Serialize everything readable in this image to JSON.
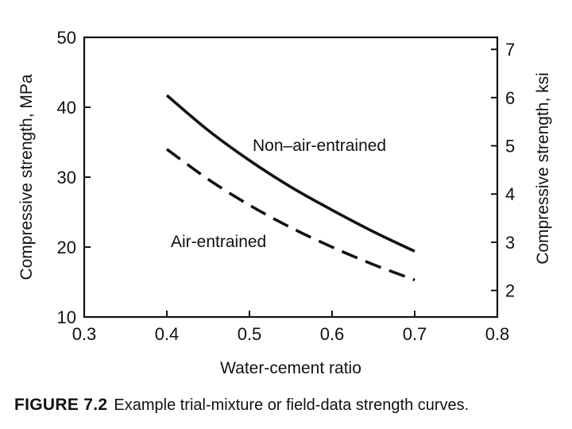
{
  "chart_data": {
    "type": "line",
    "title": "",
    "xlabel": "Water-cement ratio",
    "ylabel": "Compressive strength, MPa",
    "y2label": "Compressive strength, ksi",
    "xlim": [
      0.3,
      0.8
    ],
    "ylim": [
      10,
      50
    ],
    "y2lim": [
      1.45,
      7.25
    ],
    "x_ticks": [
      "0.3",
      "0.4",
      "0.5",
      "0.6",
      "0.7",
      "0.8"
    ],
    "y_ticks": [
      "10",
      "20",
      "30",
      "40",
      "50"
    ],
    "y2_ticks": [
      "2",
      "3",
      "4",
      "5",
      "6",
      "7"
    ],
    "grid": false,
    "series": [
      {
        "name": "Non–air-entrained",
        "line_style": "solid",
        "x": [
          0.4,
          0.45,
          0.5,
          0.55,
          0.6,
          0.65,
          0.7
        ],
        "y": [
          41.7,
          36.7,
          32.4,
          28.6,
          25.3,
          22.2,
          19.4
        ]
      },
      {
        "name": "Air-entrained",
        "line_style": "dashed",
        "x": [
          0.4,
          0.45,
          0.5,
          0.55,
          0.6,
          0.65,
          0.7
        ],
        "y": [
          34.0,
          29.7,
          26.0,
          22.8,
          20.0,
          17.5,
          15.3
        ]
      }
    ]
  },
  "caption": {
    "number": "FIGURE 7.2",
    "text": "Example trial-mixture or field-data strength curves."
  }
}
